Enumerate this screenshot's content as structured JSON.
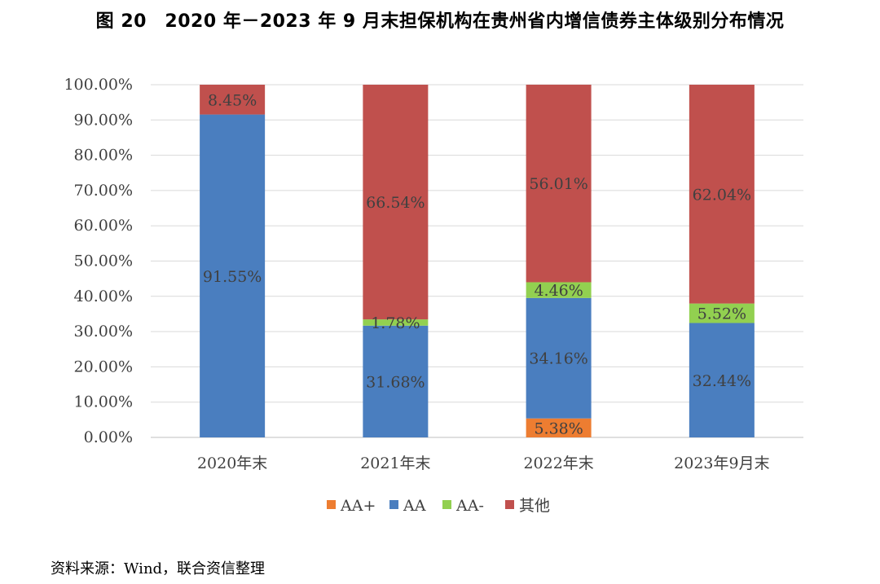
{
  "title": "图 20　2020 年－2023 年 9 月末担保机构在贵州省内增信债券主体级别分布情况",
  "source": "资料来源：Wind，联合资信整理",
  "chart_data": {
    "type": "bar",
    "stacked": true,
    "categories": [
      "2020年末",
      "2021年末",
      "2022年末",
      "2023年9月末"
    ],
    "series": [
      {
        "name": "AA+",
        "color": "#ed7d31",
        "values": [
          0,
          0,
          5.38,
          0
        ],
        "labels": [
          "",
          "",
          "5.38%",
          ""
        ]
      },
      {
        "name": "AA",
        "color": "#4a7ebf",
        "values": [
          91.55,
          31.68,
          34.16,
          32.44
        ],
        "labels": [
          "91.55%",
          "31.68%",
          "34.16%",
          "32.44%"
        ]
      },
      {
        "name": "AA-",
        "color": "#92d050",
        "values": [
          0,
          1.78,
          4.46,
          5.52
        ],
        "labels": [
          "",
          "1.78%",
          "4.46%",
          "5.52%"
        ]
      },
      {
        "name": "其他",
        "color": "#c0504d",
        "values": [
          8.45,
          66.54,
          56.01,
          62.04
        ],
        "labels": [
          "8.45%",
          "66.54%",
          "56.01%",
          "62.04%"
        ]
      }
    ],
    "yticks": [
      "0.00%",
      "10.00%",
      "20.00%",
      "30.00%",
      "40.00%",
      "50.00%",
      "60.00%",
      "70.00%",
      "80.00%",
      "90.00%",
      "100.00%"
    ],
    "ylim": [
      0,
      100
    ],
    "grid": true,
    "legend": "bottom"
  }
}
